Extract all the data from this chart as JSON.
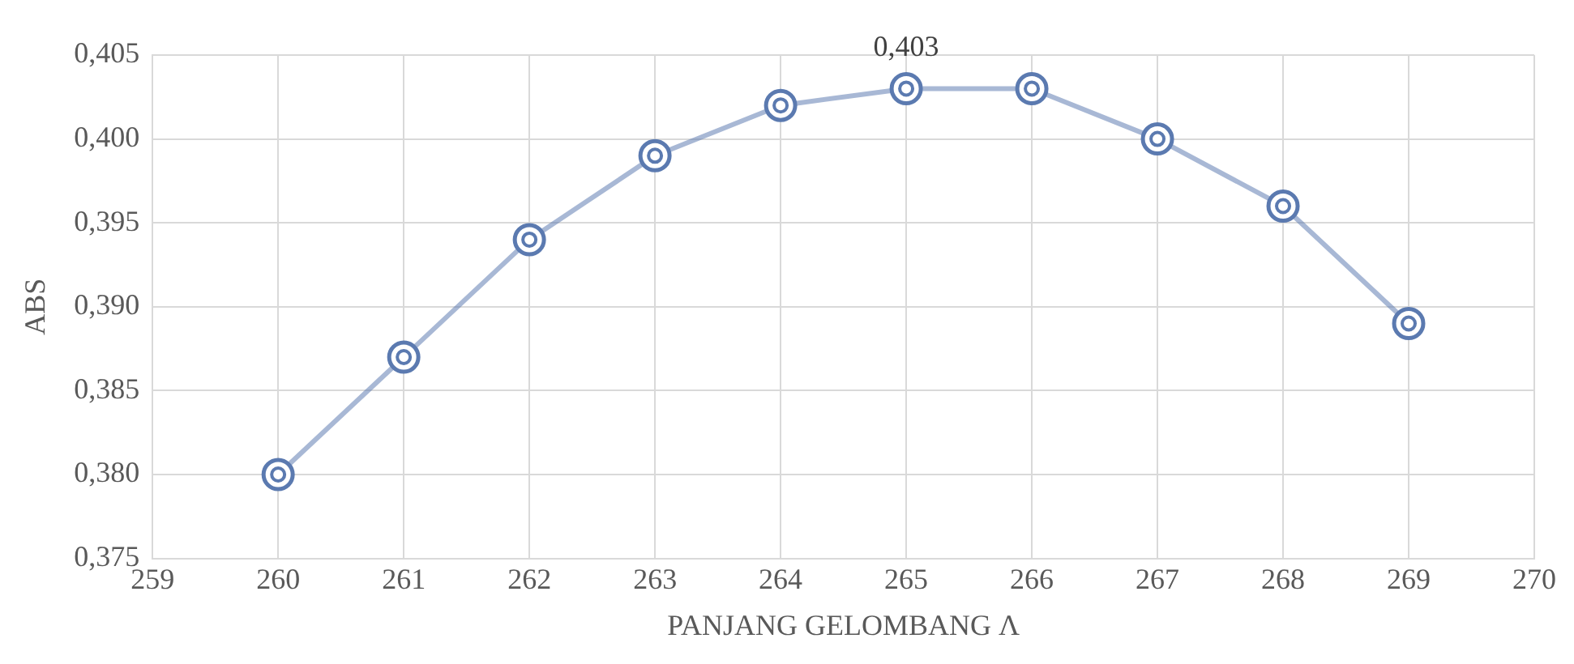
{
  "chart_data": {
    "type": "line",
    "xlabel": "PANJANG GELOMBANG Λ",
    "ylabel": "ABS",
    "x": [
      260,
      261,
      262,
      263,
      264,
      265,
      266,
      267,
      268,
      269
    ],
    "series": [
      {
        "color": "#5b7ab0",
        "values": [
          0.38,
          0.387,
          0.394,
          0.399,
          0.402,
          0.403,
          0.403,
          0.4,
          0.396,
          0.389
        ]
      }
    ],
    "xlim": [
      259,
      270
    ],
    "xticks": [
      259,
      260,
      261,
      262,
      263,
      264,
      265,
      266,
      267,
      268,
      269,
      270
    ],
    "ylim": [
      0.375,
      0.405
    ],
    "yticks": [
      {
        "value": 0.375,
        "label": "0,375"
      },
      {
        "value": 0.38,
        "label": "0,380"
      },
      {
        "value": 0.385,
        "label": "0,385"
      },
      {
        "value": 0.39,
        "label": "0,390"
      },
      {
        "value": 0.395,
        "label": "0,395"
      },
      {
        "value": 0.4,
        "label": "0,400"
      },
      {
        "value": 0.405,
        "label": "0,405"
      }
    ],
    "annotations": [
      {
        "text": "0,403",
        "x": 265,
        "y": 0.403
      }
    ],
    "grid": true,
    "marker": "circle",
    "line_style": "solid",
    "legend": false
  }
}
